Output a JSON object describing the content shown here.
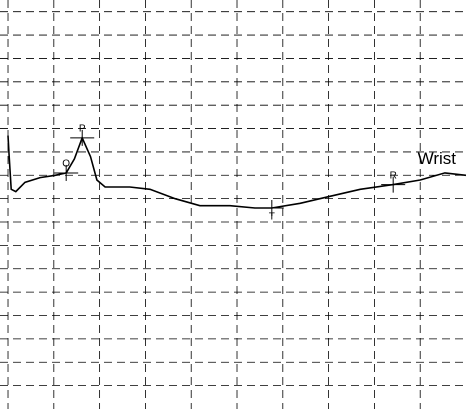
{
  "chart_data": {
    "type": "line",
    "xlim": [
      -0.175,
      10
    ],
    "ylim": [
      -9,
      8.5
    ],
    "xticks": [
      0,
      1,
      2,
      3,
      4,
      5,
      6,
      7,
      8,
      9
    ],
    "yticks": [
      -8,
      -7,
      -6,
      -5,
      -4,
      -3,
      -2,
      -1,
      0,
      1,
      2,
      3,
      4,
      5,
      6,
      7,
      8
    ],
    "grid": true,
    "x": [
      0,
      0.02,
      0.07,
      0.17,
      0.37,
      0.7,
      1.03,
      1.27,
      1.45,
      1.62,
      1.8,
      1.94,
      2.12,
      2.66,
      3.1,
      3.65,
      4.19,
      4.85,
      5.39,
      5.76,
      6.38,
      7.03,
      7.69,
      8.41,
      9.0,
      9.54,
      10.0
    ],
    "series": [
      {
        "name": "Wrist",
        "color": "#000000",
        "values": [
          2.7,
          2.0,
          0.4,
          0.3,
          0.7,
          0.9,
          1.0,
          1.1,
          1.7,
          2.6,
          1.8,
          0.8,
          0.5,
          0.5,
          0.4,
          0.0,
          -0.3,
          -0.3,
          -0.4,
          -0.4,
          -0.2,
          0.1,
          0.4,
          0.6,
          0.8,
          1.1,
          1.0
        ]
      }
    ],
    "markers": [
      {
        "label": "O",
        "x": 1.27,
        "y": 1.1
      },
      {
        "label": "P",
        "x": 1.62,
        "y": 2.6
      },
      {
        "label": "T",
        "x": 5.76,
        "y": -0.4
      },
      {
        "label": "R",
        "x": 8.41,
        "y": 0.6
      }
    ]
  }
}
